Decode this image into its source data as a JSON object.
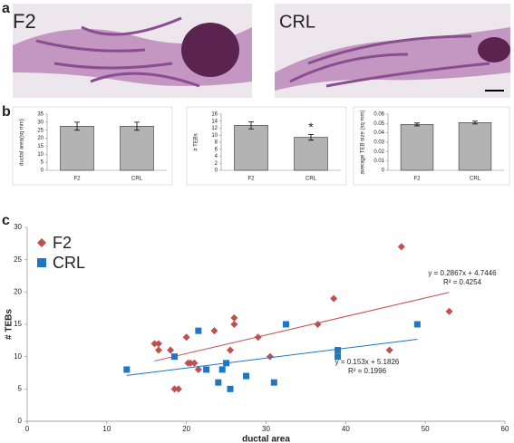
{
  "panel_labels": [
    "a",
    "b",
    "c"
  ],
  "images": [
    "F2",
    "CRL"
  ],
  "chart_data": [
    {
      "type": "bar",
      "ylabel": "ductal area(sq mm)",
      "categories": [
        "F2",
        "CRL"
      ],
      "values": [
        27.5,
        27.5
      ],
      "errors": [
        2.5,
        2.5
      ],
      "color": "#b3b3b3",
      "ylim": [
        0,
        35
      ],
      "yticks": [
        0,
        5,
        10,
        15,
        20,
        25,
        30,
        35
      ]
    },
    {
      "type": "bar",
      "ylabel": "# TEBs",
      "categories": [
        "F2",
        "CRL"
      ],
      "values": [
        12.8,
        9.4
      ],
      "errors": [
        1,
        0.8
      ],
      "color": "#b3b3b3",
      "ylim": [
        0,
        16
      ],
      "yticks": [
        0,
        2,
        4,
        6,
        8,
        10,
        12,
        14,
        16
      ],
      "annotation": "*"
    },
    {
      "type": "bar",
      "ylabel": "average TEB size (sq mm)",
      "categories": [
        "F2",
        "CRL"
      ],
      "values": [
        0.049,
        0.051
      ],
      "errors": [
        0.0015,
        0.0015
      ],
      "color": "#b3b3b3",
      "ylim": [
        0,
        0.06
      ],
      "yticks": [
        0,
        0.01,
        0.02,
        0.03,
        0.04,
        0.05,
        0.06
      ]
    },
    {
      "type": "scatter",
      "xlabel": "ductal area",
      "ylabel": "# TEBs",
      "xlim": [
        0,
        60
      ],
      "xticks": [
        0,
        10,
        20,
        30,
        40,
        50,
        60
      ],
      "ylim": [
        0,
        30
      ],
      "yticks": [
        0,
        5,
        10,
        15,
        20,
        25,
        30
      ],
      "legend": "top-left",
      "series": [
        {
          "name": "F2",
          "color": "#c0504d",
          "marker": "diamond",
          "x": [
            16,
            16.5,
            16.5,
            18,
            18.5,
            19,
            20,
            20.2,
            20.5,
            21,
            21.5,
            23.5,
            25.5,
            26,
            26,
            29,
            30.5,
            36.5,
            38.5,
            45.5,
            47,
            53
          ],
          "values": [
            12,
            12,
            11,
            11,
            5,
            5,
            13,
            9,
            9,
            9,
            8,
            14,
            11,
            16,
            15,
            13,
            10,
            15,
            19,
            11,
            27,
            17
          ],
          "trendline": {
            "slope": 0.2867,
            "intercept": 4.7446,
            "equation": "y = 0.2867x + 4.7446",
            "r_squared": "R² = 0.4254"
          }
        },
        {
          "name": "CRL",
          "color": "#1f77c4",
          "marker": "square",
          "x": [
            12.5,
            18.5,
            21.5,
            22.5,
            24,
            24.5,
            25,
            25.5,
            27.5,
            32.5,
            31,
            39,
            39,
            49
          ],
          "values": [
            8,
            10,
            14,
            8,
            6,
            8,
            9,
            5,
            7,
            15,
            6,
            11,
            10,
            15
          ],
          "trendline": {
            "slope": 0.153,
            "intercept": 5.1826,
            "equation": "y = 0.153x + 5.1826",
            "r_squared": "R² = 0.1996"
          }
        }
      ]
    }
  ]
}
